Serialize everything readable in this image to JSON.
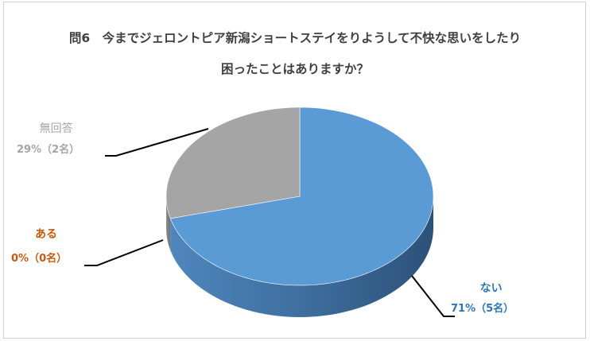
{
  "chart_data": {
    "type": "pie",
    "title_lines": [
      "問6　今までジェロントピア新潟ショートステイをりようして不快な思いをしたり",
      "困ったことはありますか？"
    ],
    "slices": [
      {
        "name": "ない",
        "value": 71,
        "count_text": "71%（5名）",
        "color": "#5b9bd5",
        "text_color": "#2e75b6"
      },
      {
        "name": "ある",
        "value": 0,
        "count_text": "0%（0名）",
        "color": "#ed7d31",
        "text_color": "#c55a11"
      },
      {
        "name": "無回答",
        "value": 29,
        "count_text": "29%（2名）",
        "color": "#a5a5a5",
        "text_color": "#a5a5a5"
      }
    ],
    "legend": "none"
  }
}
